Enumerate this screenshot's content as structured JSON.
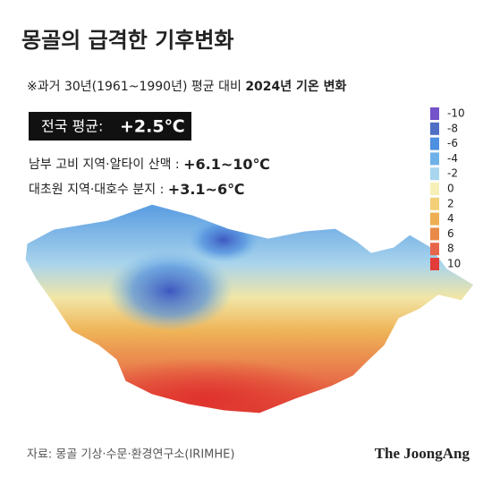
{
  "header": {
    "title": "몽골의 급격한 기후변화",
    "subtitle": "※과거 30년(1961~1990년) 평균 대비",
    "subtitle_bold": "2024년 기온 변화"
  },
  "summary": {
    "label": "전국 평균:",
    "value": "+2.5℃"
  },
  "regions": [
    {
      "name": "남부 고비 지역·알타이 산맥 :",
      "range": "+6.1~10℃"
    },
    {
      "name": "대초원 지역·대호수 분지 :",
      "range": "+3.1~6℃"
    }
  ],
  "legend": [
    {
      "value": -10,
      "color": "#7452c9"
    },
    {
      "value": -8,
      "color": "#4f6fc4"
    },
    {
      "value": -6,
      "color": "#4d8fe0"
    },
    {
      "value": -4,
      "color": "#6fb2ea"
    },
    {
      "value": -2,
      "color": "#a8d6ee"
    },
    {
      "value": 0,
      "color": "#f7efb8"
    },
    {
      "value": 2,
      "color": "#f3cf78"
    },
    {
      "value": 4,
      "color": "#eeae52"
    },
    {
      "value": 6,
      "color": "#ea8a48"
    },
    {
      "value": 8,
      "color": "#e7654a"
    },
    {
      "value": 10,
      "color": "#e23c38"
    }
  ],
  "footer": {
    "source": "자료: 몽골 기상·수문·환경연구소(IRIMHE)",
    "brand": "The JoongAng"
  }
}
